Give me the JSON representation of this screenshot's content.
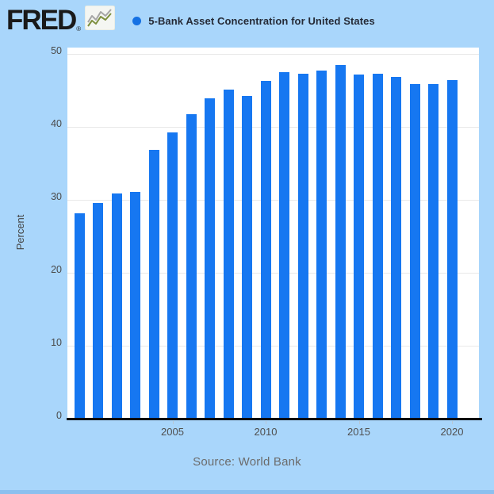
{
  "header": {
    "logo_text": "FRED",
    "logo_registered_mark": "®",
    "series_title": "5-Bank Asset Concentration for United States",
    "legend_dot_color": "#1571e3"
  },
  "colors": {
    "background": "#a9d6fb",
    "plot_background": "#ffffff",
    "bar": "#1677f1",
    "gridline": "#e8e8e8",
    "axis_line": "#0b0b0b",
    "tick_label": "#4a4a4a",
    "source_text": "#6c6c6c",
    "bottom_strip": "#8cc0ef"
  },
  "chart_data": {
    "type": "bar",
    "title": "5-Bank Asset Concentration for United States",
    "ylabel": "Percent",
    "xlabel": "",
    "x": [
      2000,
      2001,
      2002,
      2003,
      2004,
      2005,
      2006,
      2007,
      2008,
      2009,
      2010,
      2011,
      2012,
      2013,
      2014,
      2015,
      2016,
      2017,
      2018,
      2019,
      2020
    ],
    "values": [
      28.3,
      29.7,
      31.0,
      31.2,
      37.0,
      39.4,
      41.8,
      44.0,
      45.2,
      44.4,
      46.4,
      47.6,
      47.4,
      47.8,
      48.6,
      47.3,
      47.4,
      47.0,
      46.0,
      46.0,
      46.5
    ],
    "ylim": [
      0,
      50
    ],
    "ytick_values": [
      0,
      10,
      20,
      30,
      40,
      50
    ],
    "xtick_labels": [
      "2005",
      "2010",
      "2015",
      "2020"
    ],
    "grid": "horizontal",
    "legend_position": "top-header",
    "bar_color": "#1677f1"
  },
  "footer": {
    "source": "Source: World Bank"
  }
}
